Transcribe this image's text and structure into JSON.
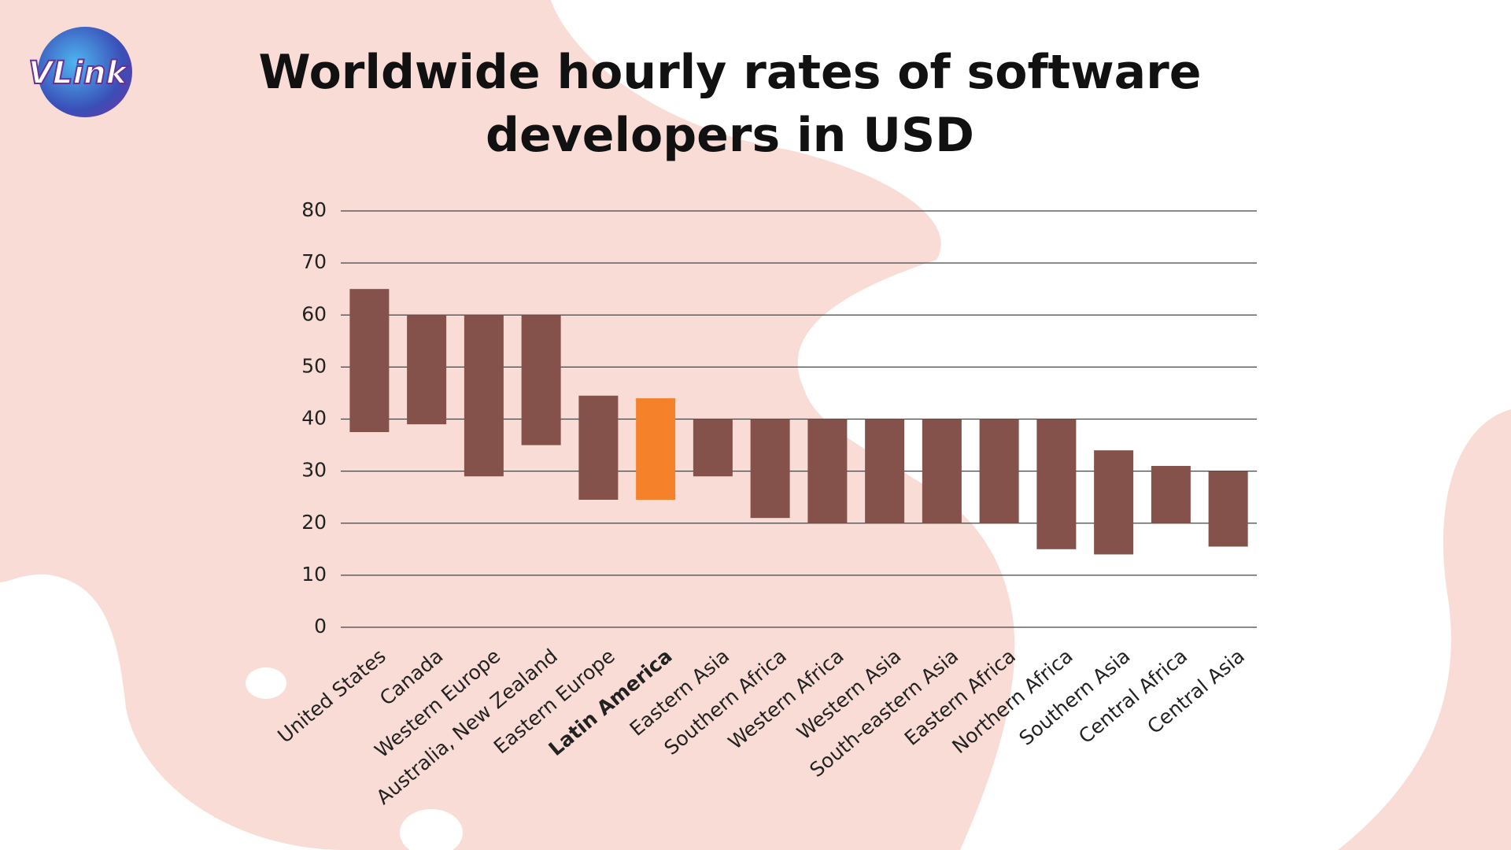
{
  "logo": "VLink",
  "chart_data": {
    "type": "floating-bar",
    "title": "Worldwide hourly rates of software developers in USD",
    "categories": [
      "United States",
      "Canada",
      "Western Europe",
      "Australia, New Zealand",
      "Eastern Europe",
      "Latin America",
      "Eastern Asia",
      "Southern Africa",
      "Western Africa",
      "Western Asia",
      "South-eastern Asia",
      "Eastern Africa",
      "Northern Africa",
      "Southern Asia",
      "Central Africa",
      "Central Asia"
    ],
    "low": [
      37.5,
      39,
      29,
      35,
      24.5,
      24.5,
      29,
      21,
      20,
      20,
      20,
      20,
      15,
      14,
      20,
      15.5
    ],
    "high": [
      65,
      60,
      60,
      60,
      44.5,
      44,
      40,
      40,
      40,
      40,
      40,
      40,
      40,
      34,
      31,
      30
    ],
    "color": "#84524a",
    "highlight": 5,
    "highlight_color": "#f5822a",
    "ylim": [
      0,
      80
    ],
    "yticks": [
      0,
      10,
      20,
      30,
      40,
      50,
      60,
      70,
      80
    ],
    "grid": true
  }
}
